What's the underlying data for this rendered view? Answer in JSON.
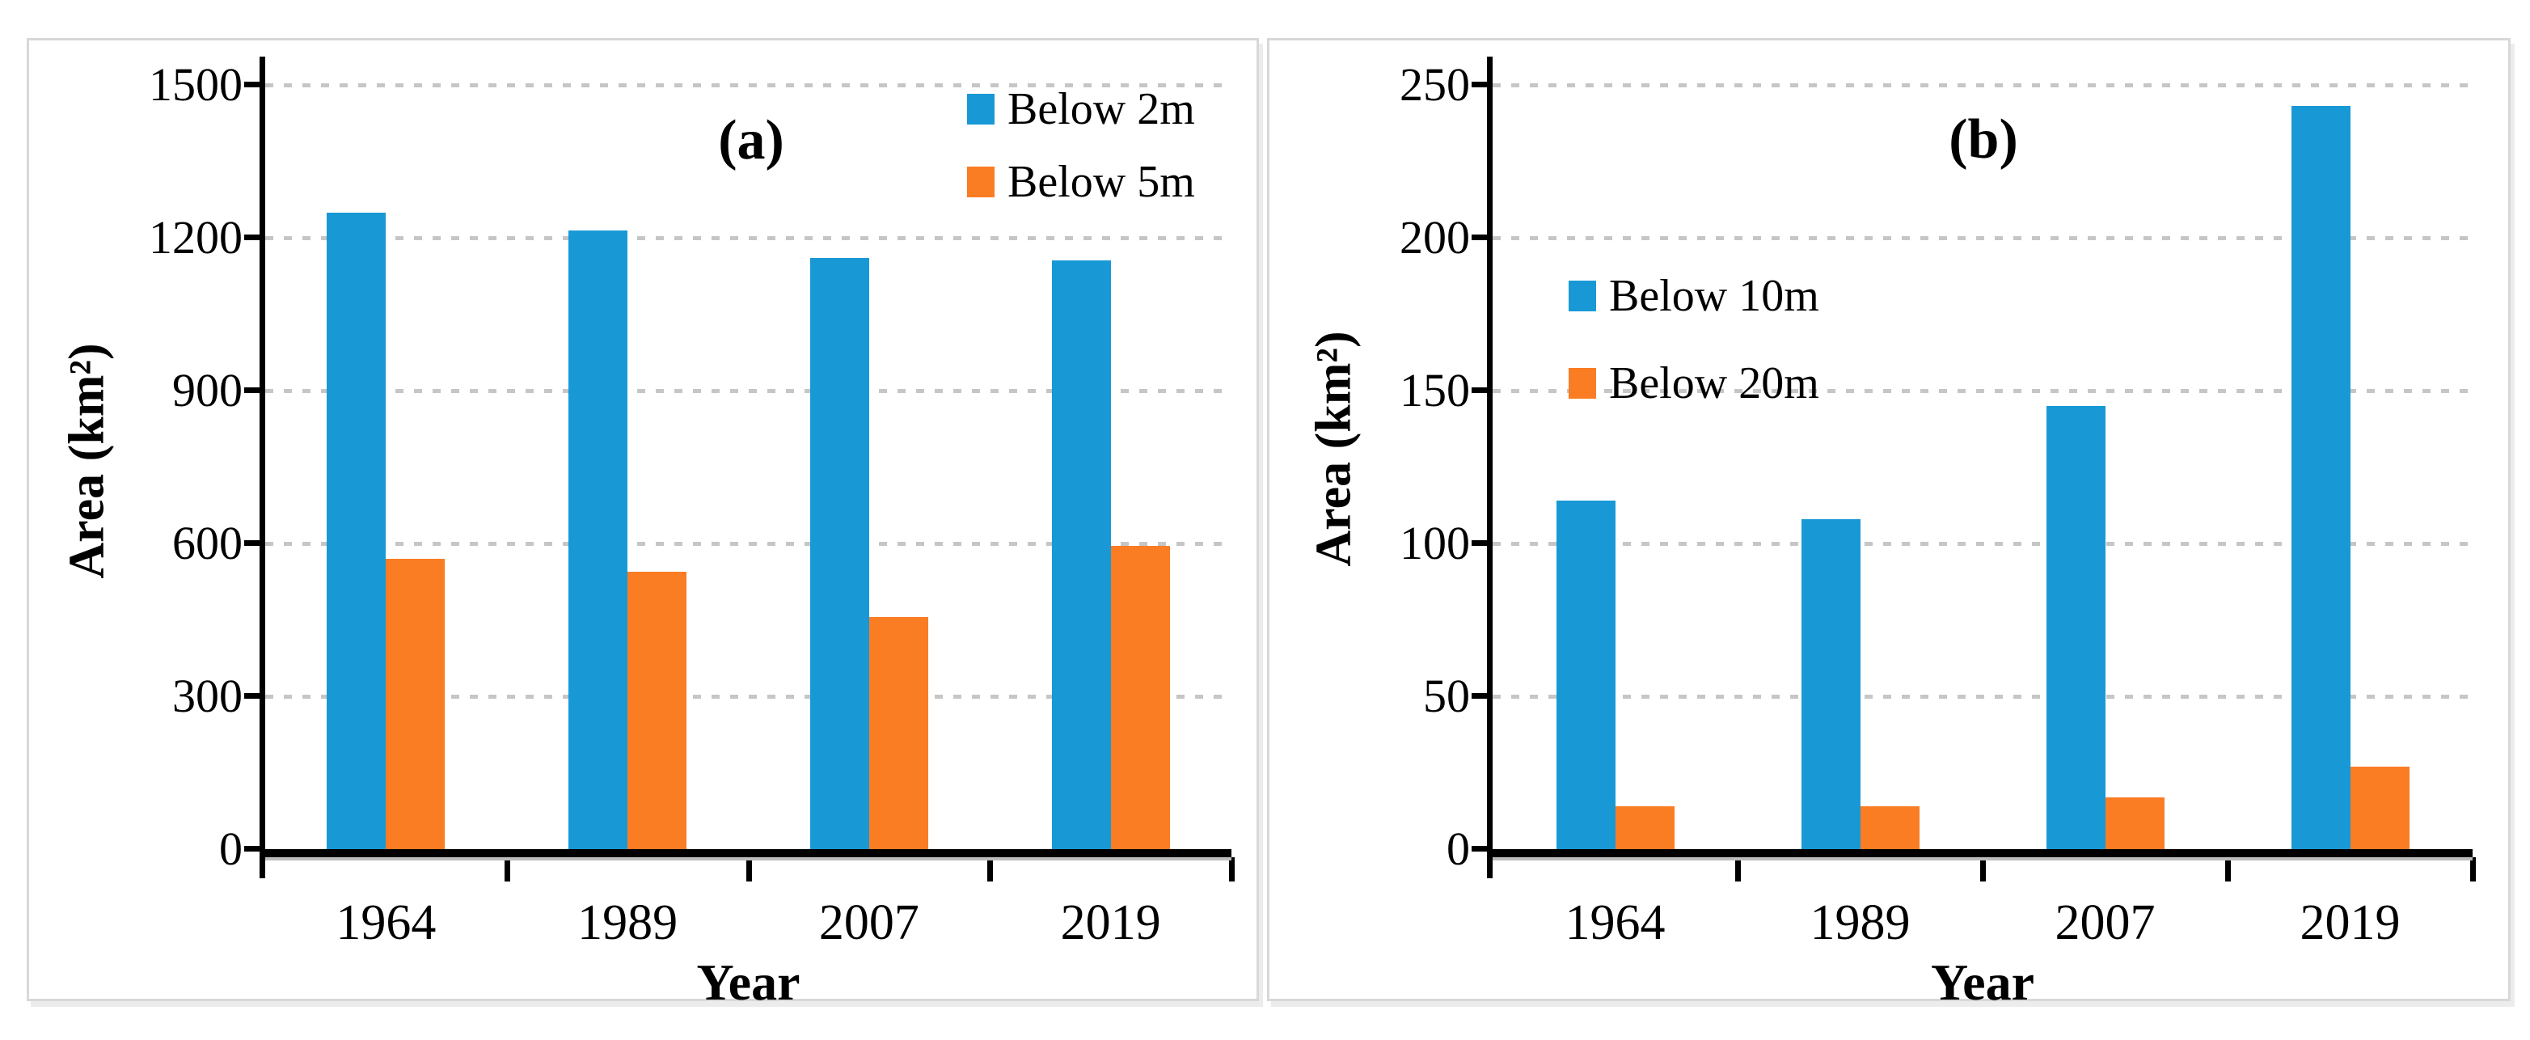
{
  "chart_data": [
    {
      "id": "a",
      "type": "bar",
      "title": "(a)",
      "xlabel": "Year",
      "ylabel": "Area (km²)",
      "categories": [
        "1964",
        "1989",
        "2007",
        "2019"
      ],
      "series": [
        {
          "name": "Below 2m",
          "color": "#1899D6",
          "values": [
            1250,
            1215,
            1160,
            1155
          ]
        },
        {
          "name": "Below 5m",
          "color": "#FA7C23",
          "values": [
            570,
            545,
            455,
            595
          ]
        }
      ],
      "ylim": [
        0,
        1500
      ],
      "y_ticks": [
        0,
        300,
        600,
        900,
        1200,
        1500
      ],
      "grid": "horizontal dotted",
      "legend_position": "upper-right inside plot"
    },
    {
      "id": "b",
      "type": "bar",
      "title": "(b)",
      "xlabel": "Year",
      "ylabel": "Area (km²)",
      "categories": [
        "1964",
        "1989",
        "2007",
        "2019"
      ],
      "series": [
        {
          "name": "Below 10m",
          "color": "#1899D6",
          "values": [
            114,
            108,
            145,
            243
          ]
        },
        {
          "name": "Below 20m",
          "color": "#FA7C23",
          "values": [
            14,
            14,
            17,
            27
          ]
        }
      ],
      "ylim": [
        0,
        250
      ],
      "y_ticks": [
        0,
        50,
        100,
        150,
        200,
        250
      ],
      "grid": "horizontal dotted",
      "legend_position": "center-left inside plot"
    }
  ],
  "colors": {
    "series_blue": "#1899D6",
    "series_orange": "#FA7C23",
    "gridline": "#C6C6C6",
    "axis": "#000000",
    "panel_border": "#D8D8D8",
    "background": "#FFFFFF"
  }
}
